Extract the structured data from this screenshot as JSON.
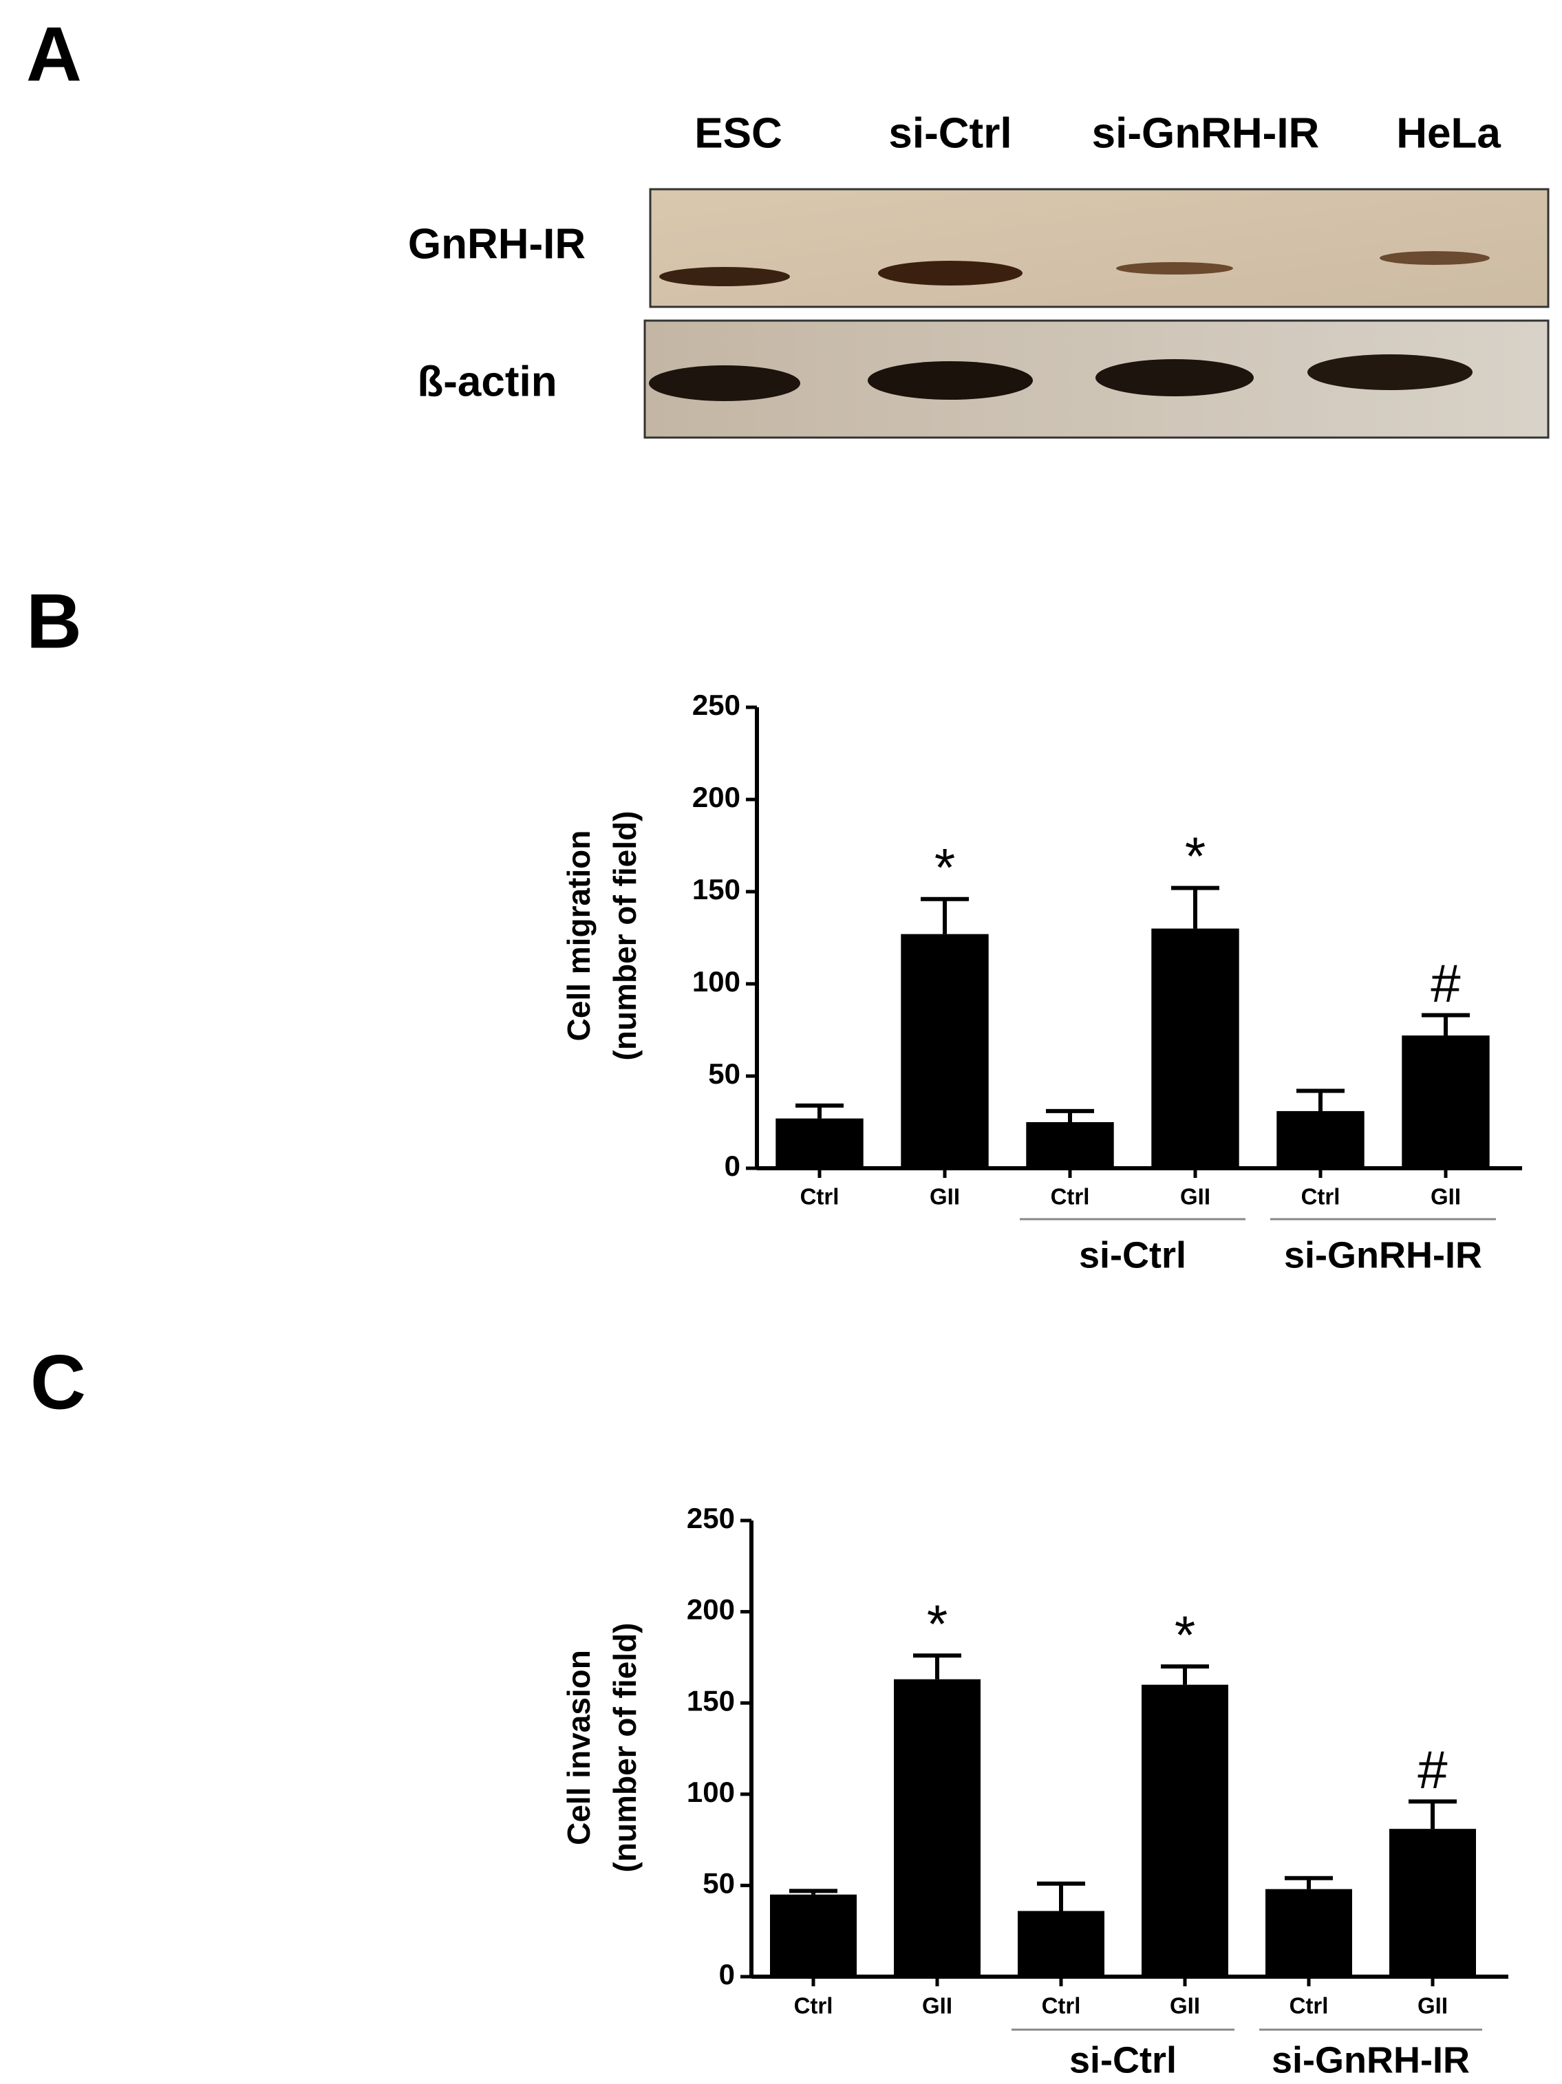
{
  "panels": [
    "A",
    "B",
    "C"
  ],
  "blot": {
    "lanes": [
      "ESC",
      "si-Ctrl",
      "si-GnRH-IR",
      "HeLa"
    ],
    "rows": [
      "GnRH-IR",
      "ß-actin"
    ]
  },
  "chart_data": [
    {
      "type": "bar",
      "ylabel": [
        "Cell migration",
        "(number of field)"
      ],
      "categories": [
        "Ctrl",
        "GII",
        "Ctrl",
        "GII",
        "Ctrl",
        "GII"
      ],
      "groups": [
        null,
        "si-Ctrl",
        "si-GnRH-IR"
      ],
      "values": [
        27,
        127,
        25,
        130,
        31,
        72
      ],
      "errors": [
        7,
        19,
        6,
        22,
        11,
        11
      ],
      "annotations": [
        null,
        "*",
        null,
        "*",
        null,
        "#"
      ],
      "color": "#000000",
      "ylim": [
        0,
        250
      ],
      "yticks": [
        0,
        50,
        100,
        150,
        200,
        250
      ]
    },
    {
      "type": "bar",
      "ylabel": [
        "Cell invasion",
        "(number of field)"
      ],
      "categories": [
        "Ctrl",
        "GII",
        "Ctrl",
        "GII",
        "Ctrl",
        "GII"
      ],
      "groups": [
        null,
        "si-Ctrl",
        "si-GnRH-IR"
      ],
      "values": [
        45,
        163,
        36,
        160,
        48,
        81
      ],
      "errors": [
        2,
        13,
        15,
        10,
        6,
        15
      ],
      "annotations": [
        null,
        "*",
        null,
        "*",
        null,
        "#"
      ],
      "color": "#000000",
      "ylim": [
        0,
        250
      ],
      "yticks": [
        0,
        50,
        100,
        150,
        200,
        250
      ]
    }
  ]
}
